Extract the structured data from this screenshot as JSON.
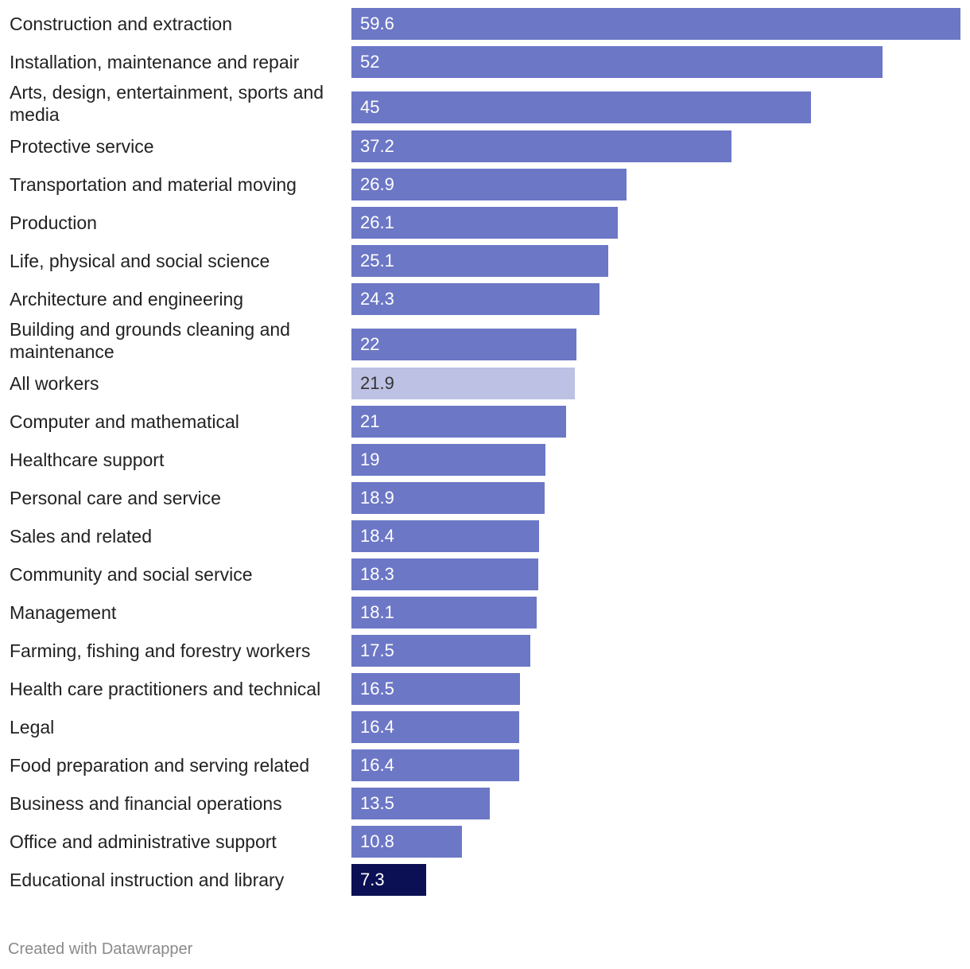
{
  "chart_data": {
    "type": "bar",
    "orientation": "horizontal",
    "xlim": [
      0,
      59.6
    ],
    "categories": [
      "Construction and extraction",
      "Installation, maintenance and repair",
      "Arts, design, entertainment, sports and media",
      "Protective service",
      "Transportation and material moving",
      "Production",
      "Life, physical and social science",
      "Architecture and engineering",
      "Building and grounds cleaning and maintenance",
      "All workers",
      "Computer and mathematical",
      "Healthcare support",
      "Personal care and service",
      "Sales and related",
      "Community and social service",
      "Management",
      "Farming, fishing and forestry workers",
      "Health care practitioners and technical",
      "Legal",
      "Food preparation and serving related",
      "Business and financial operations",
      "Office and administrative support",
      "Educational instruction and library"
    ],
    "values": [
      59.6,
      52,
      45,
      37.2,
      26.9,
      26.1,
      25.1,
      24.3,
      22,
      21.9,
      21,
      19,
      18.9,
      18.4,
      18.3,
      18.1,
      17.5,
      16.5,
      16.4,
      16.4,
      13.5,
      10.8,
      7.3
    ],
    "value_labels": [
      "59.6",
      "52",
      "45",
      "37.2",
      "26.9",
      "26.1",
      "25.1",
      "24.3",
      "22",
      "21.9",
      "21",
      "19",
      "18.9",
      "18.4",
      "18.3",
      "18.1",
      "17.5",
      "16.5",
      "16.4",
      "16.4",
      "13.5",
      "10.8",
      "7.3"
    ],
    "highlight": {
      "All workers": "average",
      "Educational instruction and library": "emphasis"
    }
  },
  "colors": {
    "default_bar": "#6c77c6",
    "average_bar": "#bdc1e3",
    "emphasis_bar": "#0b1055",
    "default_text": "#ffffff",
    "average_text": "#333333",
    "label_text": "#222222"
  },
  "footer": {
    "credit": "Created with Datawrapper"
  }
}
